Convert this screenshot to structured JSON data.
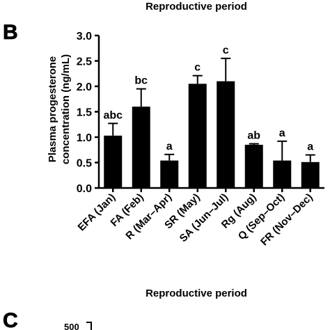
{
  "top_caption": "Reproductive period",
  "panel_b_letter": "B",
  "panel_c_letter": "C",
  "panel_c_partial_tick": "500",
  "bar_color": "#000000",
  "chart_data": {
    "type": "bar",
    "categories": [
      "EFA (Jan)",
      "FA (Feb)",
      "R (Mar–Apr)",
      "SR (May)",
      "SA (Jun–Jul)",
      "Rg (Aug)",
      "Q (Sep–Oct)",
      "FR (Nov–Dec)"
    ],
    "values": [
      1.03,
      1.6,
      0.54,
      2.05,
      2.1,
      0.85,
      0.54,
      0.51
    ],
    "error_upper": [
      1.27,
      1.95,
      0.66,
      2.21,
      2.55,
      0.87,
      0.92,
      0.65
    ],
    "significance": [
      "abc",
      "bc",
      "a",
      "c",
      "c",
      "ab",
      "a",
      "a"
    ],
    "xlabel": "Reproductive period",
    "ylabel_line1": "Plasma progesterone",
    "ylabel_line2": "concentration (ng/mL)",
    "ylim": [
      0,
      3.0
    ],
    "yticks": [
      0.0,
      0.5,
      1.0,
      1.5,
      2.0,
      2.5,
      3.0
    ],
    "ytick_labels": [
      "0.0",
      "0.5",
      "1.0",
      "1.5",
      "2.0",
      "2.5",
      "3.0"
    ]
  }
}
